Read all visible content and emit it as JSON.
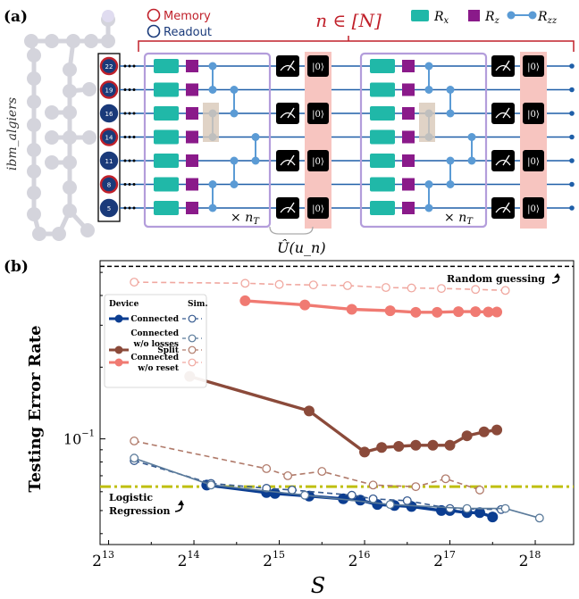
{
  "panel_a": {
    "label": "(a)",
    "device": "ibm_algiers",
    "legend_memory": "Memory",
    "legend_readout": "Readout",
    "n_label": "n ∈ [N]",
    "gate_legend": [
      "R_x",
      "R_z",
      "R_zz"
    ],
    "repeat_label": "× n_T",
    "unitary_label": "Û(u_n)",
    "reset_label": "|0⟩",
    "qubits": [
      {
        "id": "22",
        "role": "memory"
      },
      {
        "id": "19",
        "role": "memory"
      },
      {
        "id": "16",
        "role": "readout"
      },
      {
        "id": "14",
        "role": "memory"
      },
      {
        "id": "11",
        "role": "readout"
      },
      {
        "id": "8",
        "role": "memory"
      },
      {
        "id": "5",
        "role": "readout"
      }
    ],
    "measured_rows": [
      0,
      2,
      4,
      6
    ],
    "colors": {
      "memory": "#c0202a",
      "readout": "#1a3a7a",
      "rx": "#20b8a8",
      "rz": "#8a1a8a",
      "rzz": "#5b9bd5",
      "block": "#b39ddb",
      "reset_bg": "#f7c5c0"
    }
  },
  "chart_data": {
    "panel_label": "(b)",
    "type": "line",
    "xlabel": "S",
    "ylabel": "Testing Error Rate",
    "xscale": "log2",
    "yscale": "log",
    "xlim_log2": [
      12.9,
      18.45
    ],
    "ylim": [
      0.036,
      0.56
    ],
    "xticks_log2": [
      13,
      14,
      15,
      16,
      17,
      18
    ],
    "yticks": [
      {
        "value": 0.1,
        "label": "10^{-1}"
      }
    ],
    "legend_headers": [
      "Device",
      "Sim."
    ],
    "legend_rows": [
      {
        "label": "Connected",
        "device_color": "#0b3d91",
        "sim_color": "#35598f"
      },
      {
        "label": "Connected w/o losses",
        "device_color": null,
        "sim_color": "#5a7a9a"
      },
      {
        "label": "Split",
        "device_color": "#8b4a3a",
        "sim_color": "#b07a6a"
      },
      {
        "label": "Connected w/o reset",
        "device_color": "#f07a72",
        "sim_color": "#f0a8a0"
      }
    ],
    "reference_lines": [
      {
        "name": "Random guessing",
        "value": 0.53,
        "color": "#000000",
        "style": "dashed"
      },
      {
        "name": "Logistic Regression",
        "value": 0.063,
        "color": "#bfbf10",
        "style": "dashdot"
      }
    ],
    "series": [
      {
        "name": "Connected",
        "source": "Device",
        "color": "#0b3d91",
        "style": "solid",
        "filled": true,
        "points": [
          [
            14.15,
            0.064
          ],
          [
            14.85,
            0.0595
          ],
          [
            14.95,
            0.059
          ],
          [
            15.35,
            0.0575
          ],
          [
            15.75,
            0.056
          ],
          [
            15.95,
            0.0553
          ],
          [
            16.15,
            0.053
          ],
          [
            16.35,
            0.0525
          ],
          [
            16.55,
            0.052
          ],
          [
            16.9,
            0.05
          ],
          [
            17.0,
            0.05
          ],
          [
            17.2,
            0.049
          ],
          [
            17.35,
            0.049
          ],
          [
            17.5,
            0.047
          ]
        ]
      },
      {
        "name": "Connected",
        "source": "Sim.",
        "color": "#35598f",
        "style": "dashed",
        "filled": false,
        "points": [
          [
            13.3,
            0.081
          ],
          [
            14.2,
            0.065
          ],
          [
            14.85,
            0.062
          ],
          [
            15.15,
            0.061
          ],
          [
            15.85,
            0.058
          ],
          [
            16.1,
            0.056
          ],
          [
            16.5,
            0.055
          ],
          [
            17.0,
            0.051
          ],
          [
            17.6,
            0.0505
          ]
        ]
      },
      {
        "name": "Connected w/o losses",
        "source": "Sim.",
        "color": "#5a7a9a",
        "style": "solid",
        "filled": false,
        "points": [
          [
            13.3,
            0.083
          ],
          [
            14.2,
            0.064
          ],
          [
            15.3,
            0.058
          ],
          [
            16.3,
            0.053
          ],
          [
            17.2,
            0.051
          ],
          [
            17.65,
            0.051
          ],
          [
            18.05,
            0.0465
          ]
        ]
      },
      {
        "name": "Split",
        "source": "Device",
        "color": "#8b4a3a",
        "style": "solid",
        "filled": true,
        "points": [
          [
            13.95,
            0.183
          ],
          [
            15.35,
            0.131
          ],
          [
            16.0,
            0.088
          ],
          [
            16.2,
            0.092
          ],
          [
            16.4,
            0.093
          ],
          [
            16.6,
            0.094
          ],
          [
            16.8,
            0.094
          ],
          [
            17.0,
            0.094
          ],
          [
            17.2,
            0.103
          ],
          [
            17.4,
            0.107
          ],
          [
            17.55,
            0.109
          ]
        ]
      },
      {
        "name": "Split",
        "source": "Sim.",
        "color": "#b07a6a",
        "style": "dashed",
        "filled": false,
        "points": [
          [
            13.3,
            0.098
          ],
          [
            14.85,
            0.075
          ],
          [
            15.1,
            0.07
          ],
          [
            15.5,
            0.073
          ],
          [
            16.1,
            0.064
          ],
          [
            16.6,
            0.063
          ],
          [
            16.95,
            0.068
          ],
          [
            17.35,
            0.061
          ]
        ]
      },
      {
        "name": "Connected w/o reset",
        "source": "Device",
        "color": "#f07a72",
        "style": "solid",
        "filled": true,
        "points": [
          [
            14.6,
            0.38
          ],
          [
            15.3,
            0.365
          ],
          [
            15.85,
            0.35
          ],
          [
            16.3,
            0.345
          ],
          [
            16.6,
            0.34
          ],
          [
            16.85,
            0.34
          ],
          [
            17.1,
            0.342
          ],
          [
            17.3,
            0.342
          ],
          [
            17.45,
            0.341
          ],
          [
            17.55,
            0.341
          ]
        ]
      },
      {
        "name": "Connected w/o reset",
        "source": "Sim.",
        "color": "#f0a8a0",
        "style": "dashed",
        "filled": false,
        "points": [
          [
            13.3,
            0.455
          ],
          [
            14.6,
            0.45
          ],
          [
            15.0,
            0.445
          ],
          [
            15.4,
            0.443
          ],
          [
            15.8,
            0.44
          ],
          [
            16.25,
            0.432
          ],
          [
            16.55,
            0.43
          ],
          [
            16.9,
            0.428
          ],
          [
            17.3,
            0.424
          ],
          [
            17.65,
            0.42
          ]
        ]
      }
    ]
  }
}
